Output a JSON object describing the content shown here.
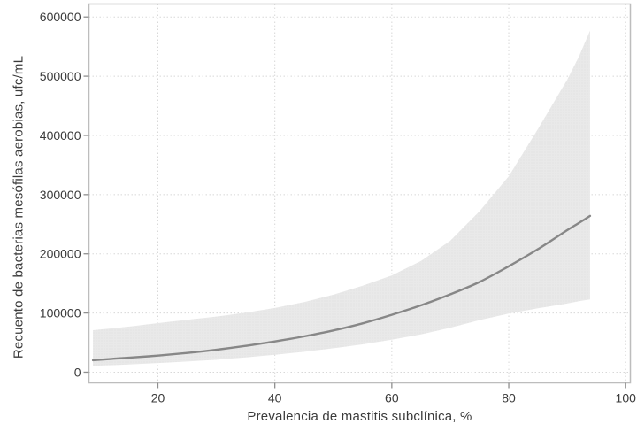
{
  "figure": {
    "background": "#ffffff",
    "frame_color": "#bdbdbd",
    "grid_color": "#d8d8d8",
    "tick_color": "#8f8f8f",
    "label_color": "#3a3a3a",
    "band_fill_color": "#e9e9e9",
    "band_dot_color": "#dddddd",
    "line_color": "#878787"
  },
  "chart_data": {
    "type": "line",
    "title": "",
    "xlabel": "Prevalencia de mastitis subclínica, %",
    "ylabel": "Recuento de bacterias mesófilas aerobias, ufc/mL",
    "xlim": [
      8.2,
      100.8
    ],
    "ylim": [
      -18000,
      622000
    ],
    "x_ticks": [
      20,
      40,
      60,
      80,
      100
    ],
    "y_ticks": [
      0,
      100000,
      200000,
      300000,
      400000,
      500000,
      600000
    ],
    "grid": "dotted, both axes",
    "legend_position": "none",
    "x": [
      8.9,
      15,
      20,
      25,
      30,
      35,
      40,
      45,
      50,
      55,
      60,
      65,
      70,
      75,
      80,
      85,
      90,
      92,
      93.9
    ],
    "series": [
      {
        "name": "predicted-mean",
        "role": "line",
        "values": [
          20300,
          24500,
          28000,
          32500,
          38000,
          44500,
          52000,
          60500,
          70500,
          82500,
          97000,
          113000,
          131500,
          152500,
          179000,
          208000,
          240000,
          252000,
          264000
        ]
      },
      {
        "name": "upper-95-confidence-limit",
        "role": "band-upper",
        "values": [
          71000,
          77000,
          83000,
          88500,
          94000,
          100500,
          108500,
          118500,
          131000,
          146000,
          163500,
          188000,
          222000,
          272000,
          331000,
          411000,
          494000,
          533000,
          577000
        ]
      },
      {
        "name": "lower-95-confidence-limit",
        "role": "band-lower",
        "values": [
          10800,
          13000,
          15500,
          18000,
          21000,
          25000,
          29500,
          34500,
          40500,
          47000,
          55000,
          64000,
          75000,
          88000,
          99000,
          108000,
          116000,
          120000,
          123000
        ]
      }
    ]
  }
}
